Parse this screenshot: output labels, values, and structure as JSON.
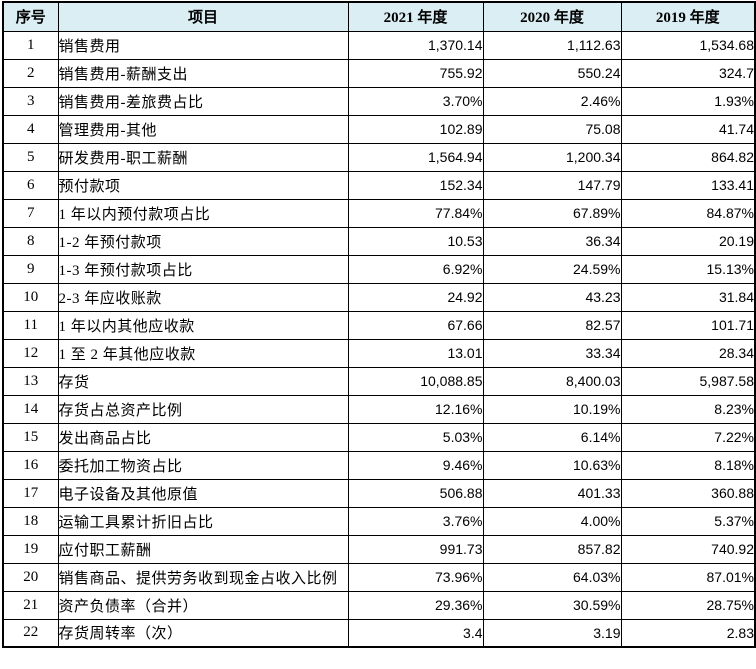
{
  "table": {
    "header_bg_color": "#daeef3",
    "border_color": "#000000",
    "headers": [
      "序号",
      "项目",
      "2021 年度",
      "2020 年度",
      "2019 年度"
    ],
    "rows": [
      [
        "1",
        "销售费用",
        "1,370.14",
        "1,112.63",
        "1,534.68"
      ],
      [
        "2",
        "销售费用-薪酬支出",
        "755.92",
        "550.24",
        "324.7"
      ],
      [
        "3",
        "销售费用-差旅费占比",
        "3.70%",
        "2.46%",
        "1.93%"
      ],
      [
        "4",
        "管理费用-其他",
        "102.89",
        "75.08",
        "41.74"
      ],
      [
        "5",
        "研发费用-职工薪酬",
        "1,564.94",
        "1,200.34",
        "864.82"
      ],
      [
        "6",
        "预付款项",
        "152.34",
        "147.79",
        "133.41"
      ],
      [
        "7",
        "1 年以内预付款项占比",
        "77.84%",
        "67.89%",
        "84.87%"
      ],
      [
        "8",
        "1-2 年预付款项",
        "10.53",
        "36.34",
        "20.19"
      ],
      [
        "9",
        "1-3 年预付款项占比",
        "6.92%",
        "24.59%",
        "15.13%"
      ],
      [
        "10",
        "2-3 年应收账款",
        "24.92",
        "43.23",
        "31.84"
      ],
      [
        "11",
        "1 年以内其他应收款",
        "67.66",
        "82.57",
        "101.71"
      ],
      [
        "12",
        "1 至 2 年其他应收款",
        "13.01",
        "33.34",
        "28.34"
      ],
      [
        "13",
        "存货",
        "10,088.85",
        "8,400.03",
        "5,987.58"
      ],
      [
        "14",
        "存货占总资产比例",
        "12.16%",
        "10.19%",
        "8.23%"
      ],
      [
        "15",
        "发出商品占比",
        "5.03%",
        "6.14%",
        "7.22%"
      ],
      [
        "16",
        "委托加工物资占比",
        "9.46%",
        "10.63%",
        "8.18%"
      ],
      [
        "17",
        "电子设备及其他原值",
        "506.88",
        "401.33",
        "360.88"
      ],
      [
        "18",
        "运输工具累计折旧占比",
        "3.76%",
        "4.00%",
        "5.37%"
      ],
      [
        "19",
        "应付职工薪酬",
        "991.73",
        "857.82",
        "740.92"
      ],
      [
        "20",
        "销售商品、提供劳务收到现金占收入比例",
        "73.96%",
        "64.03%",
        "87.01%"
      ],
      [
        "21",
        "资产负债率（合并）",
        "29.36%",
        "30.59%",
        "28.75%"
      ],
      [
        "22",
        "存货周转率（次）",
        "3.4",
        "3.19",
        "2.83"
      ]
    ]
  }
}
